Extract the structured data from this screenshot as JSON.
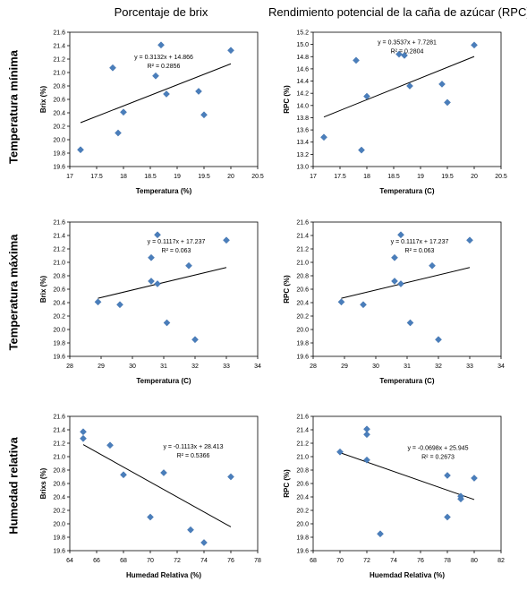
{
  "columns": [
    "Porcentaje de brix",
    "Rendimiento potencial de la caña de azúcar (RPC)"
  ],
  "rows": [
    "Temperatura mínima",
    "Temperatura máxima",
    "Humedad relativa"
  ],
  "colors": {
    "marker": "#4a7ebb",
    "trendline": "#000000",
    "border": "#000000"
  },
  "chart_data": [
    {
      "type": "scatter",
      "id": "c1",
      "xlabel": "Temperatura (%)",
      "ylabel": "Brix (%)",
      "xlim": [
        17,
        20.5
      ],
      "ylim": [
        19.6,
        21.6
      ],
      "xticks": [
        17,
        17.5,
        18,
        18.5,
        19,
        19.5,
        20,
        20.5
      ],
      "yticks": [
        19.6,
        19.8,
        20.0,
        20.2,
        20.4,
        20.6,
        20.8,
        21.0,
        21.2,
        21.4,
        21.6
      ],
      "xtick_labels": [
        "17",
        "17.5",
        "18",
        "18.5",
        "19",
        "19.5",
        "20",
        "20.5"
      ],
      "ytick_labels": [
        "19.6",
        "19.8",
        "20.0",
        "20.2",
        "20.4",
        "20.6",
        "20.8",
        "21.0",
        "21.2",
        "21.4",
        "21.6"
      ],
      "points": [
        [
          17.2,
          19.85
        ],
        [
          17.8,
          21.07
        ],
        [
          17.9,
          20.1
        ],
        [
          18.0,
          20.41
        ],
        [
          18.6,
          20.95
        ],
        [
          18.7,
          21.41
        ],
        [
          18.8,
          20.68
        ],
        [
          19.4,
          20.72
        ],
        [
          19.5,
          20.37
        ],
        [
          20.0,
          21.33
        ]
      ],
      "trendline": {
        "slope": 0.3132,
        "intercept": 14.866,
        "from": 17.2,
        "to": 20.0
      },
      "equation": "y = 0.3132x + 14.866",
      "r2": "R² = 0.2856",
      "eq_anchor": [
        18.75,
        21.2
      ]
    },
    {
      "type": "scatter",
      "id": "c2",
      "xlabel": "Temperatura (C)",
      "ylabel": "RPC (%)",
      "xlim": [
        17,
        20.5
      ],
      "ylim": [
        13.0,
        15.2
      ],
      "xticks": [
        17,
        17.5,
        18,
        18.5,
        19,
        19.5,
        20,
        20.5
      ],
      "yticks": [
        13.0,
        13.2,
        13.4,
        13.6,
        13.8,
        14.0,
        14.2,
        14.4,
        14.6,
        14.8,
        15.0,
        15.2
      ],
      "xtick_labels": [
        "17",
        "17.5",
        "18",
        "18.5",
        "19",
        "19.5",
        "20",
        "20.5"
      ],
      "ytick_labels": [
        "13.0",
        "13.2",
        "13.4",
        "13.6",
        "13.8",
        "14.0",
        "14.2",
        "14.4",
        "14.6",
        "14.8",
        "15.0",
        "15.2"
      ],
      "points": [
        [
          17.2,
          13.48
        ],
        [
          17.8,
          14.74
        ],
        [
          17.9,
          13.27
        ],
        [
          18.0,
          14.15
        ],
        [
          18.6,
          14.84
        ],
        [
          18.7,
          14.82
        ],
        [
          18.8,
          14.32
        ],
        [
          19.4,
          14.35
        ],
        [
          19.5,
          14.05
        ],
        [
          20.0,
          14.99
        ]
      ],
      "trendline": {
        "slope": 0.3537,
        "intercept": 7.7281,
        "from": 17.2,
        "to": 20.0
      },
      "equation": "y = 0.3537x + 7.7281",
      "r2": "R² = 0.2804",
      "eq_anchor": [
        18.75,
        15.0
      ]
    },
    {
      "type": "scatter",
      "id": "c3",
      "xlabel": "Temperatura (C)",
      "ylabel": "Brix (%)",
      "xlim": [
        28,
        34
      ],
      "ylim": [
        19.6,
        21.6
      ],
      "xticks": [
        28,
        29,
        30,
        31,
        32,
        33,
        34
      ],
      "yticks": [
        19.6,
        19.8,
        20.0,
        20.2,
        20.4,
        20.6,
        20.8,
        21.0,
        21.2,
        21.4,
        21.6
      ],
      "xtick_labels": [
        "28",
        "29",
        "30",
        "31",
        "32",
        "33",
        "34"
      ],
      "ytick_labels": [
        "19.6",
        "19.8",
        "20.0",
        "20.2",
        "20.4",
        "20.6",
        "20.8",
        "21.0",
        "21.2",
        "21.4",
        "21.6"
      ],
      "points": [
        [
          28.9,
          20.41
        ],
        [
          29.6,
          20.37
        ],
        [
          30.6,
          21.07
        ],
        [
          30.6,
          20.72
        ],
        [
          30.8,
          21.41
        ],
        [
          30.8,
          20.68
        ],
        [
          31.1,
          20.1
        ],
        [
          31.8,
          20.95
        ],
        [
          32.0,
          19.85
        ],
        [
          33.0,
          21.33
        ]
      ],
      "trendline": {
        "slope": 0.1117,
        "intercept": 17.237,
        "from": 28.9,
        "to": 33.0
      },
      "equation": "y = 0.1117x + 17.237",
      "r2": "R² = 0.063",
      "eq_anchor": [
        31.4,
        21.28
      ]
    },
    {
      "type": "scatter",
      "id": "c4",
      "xlabel": "Temperatura (C)",
      "ylabel": "RPC (%)",
      "xlim": [
        28,
        34
      ],
      "ylim": [
        19.6,
        21.6
      ],
      "xticks": [
        28,
        29,
        30,
        31,
        32,
        33,
        34
      ],
      "yticks": [
        19.6,
        19.8,
        20.0,
        20.2,
        20.4,
        20.6,
        20.8,
        21.0,
        21.2,
        21.4,
        21.6
      ],
      "xtick_labels": [
        "28",
        "29",
        "30",
        "31",
        "32",
        "33",
        "34"
      ],
      "ytick_labels": [
        "19.6",
        "19.8",
        "20.0",
        "20.2",
        "20.4",
        "20.6",
        "20.8",
        "21.0",
        "21.2",
        "21.4",
        "21.6"
      ],
      "points": [
        [
          28.9,
          20.41
        ],
        [
          29.6,
          20.37
        ],
        [
          30.6,
          21.07
        ],
        [
          30.6,
          20.72
        ],
        [
          30.8,
          21.41
        ],
        [
          30.8,
          20.68
        ],
        [
          31.1,
          20.1
        ],
        [
          31.8,
          20.95
        ],
        [
          32.0,
          19.85
        ],
        [
          33.0,
          21.33
        ]
      ],
      "trendline": {
        "slope": 0.1117,
        "intercept": 17.237,
        "from": 28.9,
        "to": 33.0
      },
      "equation": "y = 0.1117x + 17.237",
      "r2": "R² = 0.063",
      "eq_anchor": [
        31.4,
        21.28
      ]
    },
    {
      "type": "scatter",
      "id": "c5",
      "xlabel": "Humedad Relativa (%)",
      "ylabel": "Brixs (%)",
      "xlim": [
        64,
        78
      ],
      "ylim": [
        19.6,
        21.6
      ],
      "xticks": [
        64,
        66,
        68,
        70,
        72,
        74,
        76,
        78
      ],
      "yticks": [
        19.6,
        19.8,
        20.0,
        20.2,
        20.4,
        20.6,
        20.8,
        21.0,
        21.2,
        21.4,
        21.6
      ],
      "xtick_labels": [
        "64",
        "66",
        "68",
        "70",
        "72",
        "74",
        "76",
        "78"
      ],
      "ytick_labels": [
        "19.6",
        "19.8",
        "20.0",
        "20.2",
        "20.4",
        "20.6",
        "20.8",
        "21.0",
        "21.2",
        "21.4",
        "21.6"
      ],
      "points": [
        [
          65.0,
          21.37
        ],
        [
          65.0,
          21.27
        ],
        [
          67.0,
          21.17
        ],
        [
          68.0,
          20.73
        ],
        [
          70.0,
          20.1
        ],
        [
          71.0,
          20.76
        ],
        [
          73.0,
          19.91
        ],
        [
          74.0,
          19.72
        ],
        [
          76.0,
          20.7
        ]
      ],
      "trendline": {
        "slope": -0.1113,
        "intercept": 28.413,
        "from": 65.0,
        "to": 76.0
      },
      "equation": "y = -0.1113x + 28.413",
      "r2": "R² = 0.5366",
      "eq_anchor": [
        73.2,
        21.12
      ]
    },
    {
      "type": "scatter",
      "id": "c6",
      "xlabel": "Huemdad Relativa (%)",
      "ylabel": "RPC (%)",
      "xlim": [
        68,
        82
      ],
      "ylim": [
        19.6,
        21.6
      ],
      "xticks": [
        68,
        70,
        72,
        74,
        76,
        78,
        80,
        82
      ],
      "yticks": [
        19.6,
        19.8,
        20.0,
        20.2,
        20.4,
        20.6,
        20.8,
        21.0,
        21.2,
        21.4,
        21.6
      ],
      "xtick_labels": [
        "68",
        "70",
        "72",
        "74",
        "76",
        "78",
        "80",
        "82"
      ],
      "ytick_labels": [
        "19.6",
        "19.8",
        "20.0",
        "20.2",
        "20.4",
        "20.6",
        "20.8",
        "21.0",
        "21.2",
        "21.4",
        "21.6"
      ],
      "points": [
        [
          70.0,
          21.07
        ],
        [
          72.0,
          21.41
        ],
        [
          72.0,
          21.33
        ],
        [
          72.0,
          20.95
        ],
        [
          73.0,
          19.85
        ],
        [
          78.0,
          20.72
        ],
        [
          78.0,
          20.1
        ],
        [
          79.0,
          20.41
        ],
        [
          79.0,
          20.37
        ],
        [
          80.0,
          20.68
        ]
      ],
      "trendline": {
        "slope": -0.0698,
        "intercept": 25.945,
        "from": 70.0,
        "to": 80.0
      },
      "equation": "y = -0.0698x + 25.945",
      "r2": "R² = 0.2673",
      "eq_anchor": [
        77.3,
        21.1
      ]
    }
  ]
}
